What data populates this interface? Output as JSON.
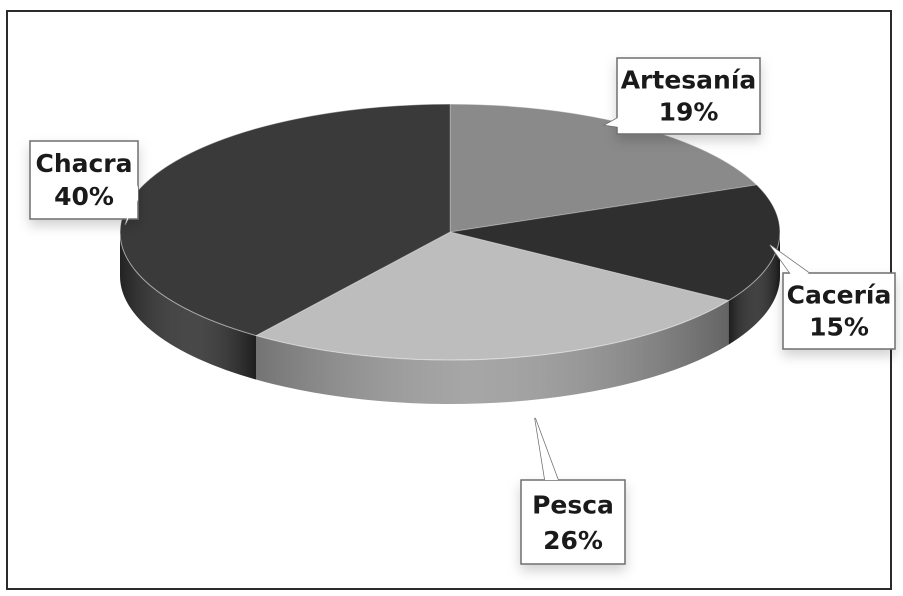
{
  "chart_data": {
    "type": "pie",
    "categories": [
      "Artesanía",
      "Cacería",
      "Pesca",
      "Chacra"
    ],
    "values": [
      19,
      15,
      26,
      40
    ],
    "labels": [
      {
        "name": "Artesanía",
        "value_text": "19%"
      },
      {
        "name": "Cacería",
        "value_text": "15%"
      },
      {
        "name": "Pesca",
        "value_text": "26%"
      },
      {
        "name": "Chacra",
        "value_text": "40%"
      }
    ],
    "colors": [
      "#8a8a8a",
      "#2f2f2f",
      "#bdbdbd",
      "#3a3a3a"
    ],
    "side_colors": [
      "#6f6f6f",
      "#262626",
      "#9a9a9a",
      "#2e2e2e"
    ],
    "legend": "none",
    "style": "3d-pie"
  }
}
